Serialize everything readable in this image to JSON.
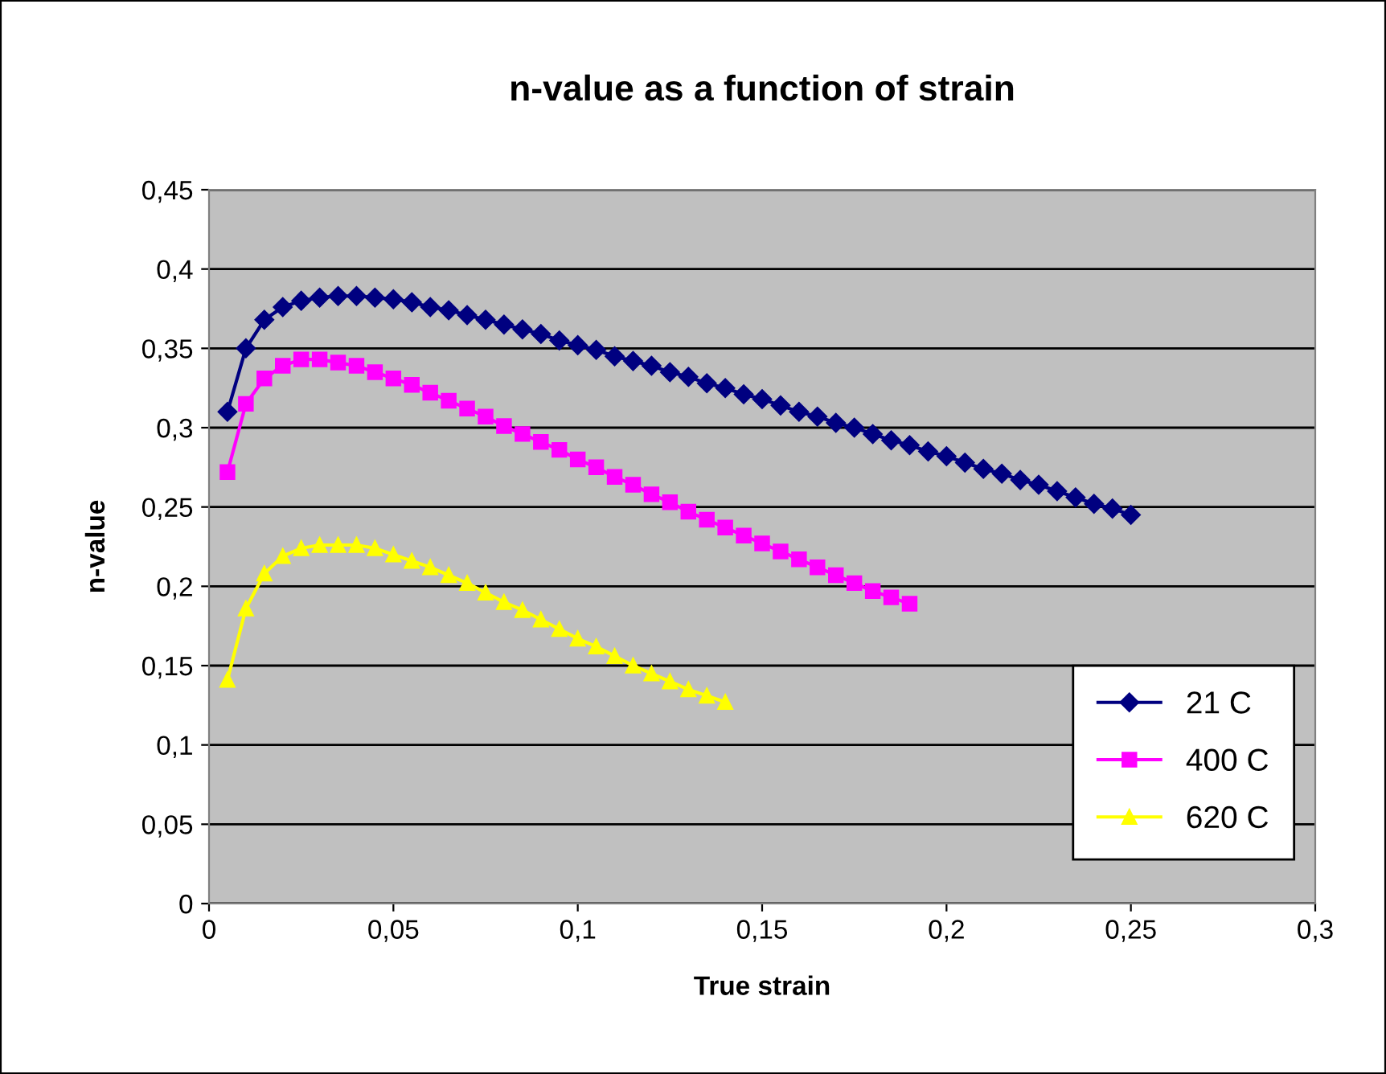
{
  "chart_data": {
    "type": "line",
    "title": "n-value as a function of strain",
    "xlabel": "True strain",
    "ylabel": "n-value",
    "xlim": [
      0,
      0.3
    ],
    "xticks": [
      {
        "value": 0,
        "label": "0"
      },
      {
        "value": 0.05,
        "label": "0,05"
      },
      {
        "value": 0.1,
        "label": "0,1"
      },
      {
        "value": 0.15,
        "label": "0,15"
      },
      {
        "value": 0.2,
        "label": "0,2"
      },
      {
        "value": 0.25,
        "label": "0,25"
      },
      {
        "value": 0.3,
        "label": "0,3"
      }
    ],
    "ylim": [
      0,
      0.45
    ],
    "yticks": [
      {
        "value": 0,
        "label": "0"
      },
      {
        "value": 0.05,
        "label": "0,05"
      },
      {
        "value": 0.1,
        "label": "0,1"
      },
      {
        "value": 0.15,
        "label": "0,15"
      },
      {
        "value": 0.2,
        "label": "0,2"
      },
      {
        "value": 0.25,
        "label": "0,25"
      },
      {
        "value": 0.3,
        "label": "0,3"
      },
      {
        "value": 0.35,
        "label": "0,35"
      },
      {
        "value": 0.4,
        "label": "0,4"
      },
      {
        "value": 0.45,
        "label": "0,45"
      }
    ],
    "grid": "y",
    "legend": "bottom right",
    "series": [
      {
        "name": "21 C",
        "color": "#000080",
        "marker": "diamond",
        "x": [
          0.005,
          0.01,
          0.015,
          0.02,
          0.025,
          0.03,
          0.035,
          0.04,
          0.045,
          0.05,
          0.055,
          0.06,
          0.065,
          0.07,
          0.075,
          0.08,
          0.085,
          0.09,
          0.095,
          0.1,
          0.105,
          0.11,
          0.115,
          0.12,
          0.125,
          0.13,
          0.135,
          0.14,
          0.145,
          0.15,
          0.155,
          0.16,
          0.165,
          0.17,
          0.175,
          0.18,
          0.185,
          0.19,
          0.195,
          0.2,
          0.205,
          0.21,
          0.215,
          0.22,
          0.225,
          0.23,
          0.235,
          0.24,
          0.245,
          0.25
        ],
        "values": [
          0.31,
          0.35,
          0.368,
          0.376,
          0.38,
          0.382,
          0.383,
          0.383,
          0.382,
          0.381,
          0.379,
          0.376,
          0.374,
          0.371,
          0.368,
          0.365,
          0.362,
          0.359,
          0.355,
          0.352,
          0.349,
          0.345,
          0.342,
          0.339,
          0.335,
          0.332,
          0.328,
          0.325,
          0.321,
          0.318,
          0.314,
          0.31,
          0.307,
          0.303,
          0.3,
          0.296,
          0.292,
          0.289,
          0.285,
          0.282,
          0.278,
          0.274,
          0.271,
          0.267,
          0.264,
          0.26,
          0.256,
          0.252,
          0.249,
          0.245
        ]
      },
      {
        "name": "400 C",
        "color": "#ff00ff",
        "marker": "square",
        "x": [
          0.005,
          0.01,
          0.015,
          0.02,
          0.025,
          0.03,
          0.035,
          0.04,
          0.045,
          0.05,
          0.055,
          0.06,
          0.065,
          0.07,
          0.075,
          0.08,
          0.085,
          0.09,
          0.095,
          0.1,
          0.105,
          0.11,
          0.115,
          0.12,
          0.125,
          0.13,
          0.135,
          0.14,
          0.145,
          0.15,
          0.155,
          0.16,
          0.165,
          0.17,
          0.175,
          0.18,
          0.185,
          0.19
        ],
        "values": [
          0.272,
          0.315,
          0.331,
          0.339,
          0.343,
          0.343,
          0.341,
          0.339,
          0.335,
          0.331,
          0.327,
          0.322,
          0.317,
          0.312,
          0.307,
          0.301,
          0.296,
          0.291,
          0.286,
          0.28,
          0.275,
          0.269,
          0.264,
          0.258,
          0.253,
          0.247,
          0.242,
          0.237,
          0.232,
          0.227,
          0.222,
          0.217,
          0.212,
          0.207,
          0.202,
          0.197,
          0.193,
          0.189
        ]
      },
      {
        "name": "620 C",
        "color": "#ffff00",
        "marker": "triangle",
        "x": [
          0.005,
          0.01,
          0.015,
          0.02,
          0.025,
          0.03,
          0.035,
          0.04,
          0.045,
          0.05,
          0.055,
          0.06,
          0.065,
          0.07,
          0.075,
          0.08,
          0.085,
          0.09,
          0.095,
          0.1,
          0.105,
          0.11,
          0.115,
          0.12,
          0.125,
          0.13,
          0.135,
          0.14
        ],
        "values": [
          0.141,
          0.186,
          0.208,
          0.219,
          0.224,
          0.226,
          0.226,
          0.226,
          0.224,
          0.22,
          0.216,
          0.212,
          0.207,
          0.202,
          0.196,
          0.19,
          0.185,
          0.179,
          0.173,
          0.167,
          0.162,
          0.156,
          0.15,
          0.145,
          0.14,
          0.135,
          0.131,
          0.127
        ]
      }
    ]
  }
}
